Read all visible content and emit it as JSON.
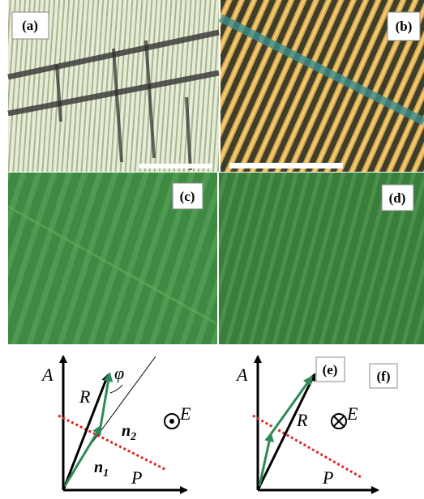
{
  "panels": {
    "a": "(a)",
    "b": "(b)",
    "c": "(c)",
    "d": "(d)",
    "e": "(e)",
    "f": "(f)"
  },
  "diagram_e": {
    "axis_a": "A",
    "axis_p": "P",
    "r": "R",
    "phi": "φ",
    "n2": {
      "base": "n",
      "sub": "2"
    },
    "n1": {
      "base": "n",
      "sub": "1"
    },
    "field": "E"
  },
  "diagram_f": {
    "axis_a": "A",
    "axis_p": "P",
    "r": "R",
    "field": "E"
  }
}
